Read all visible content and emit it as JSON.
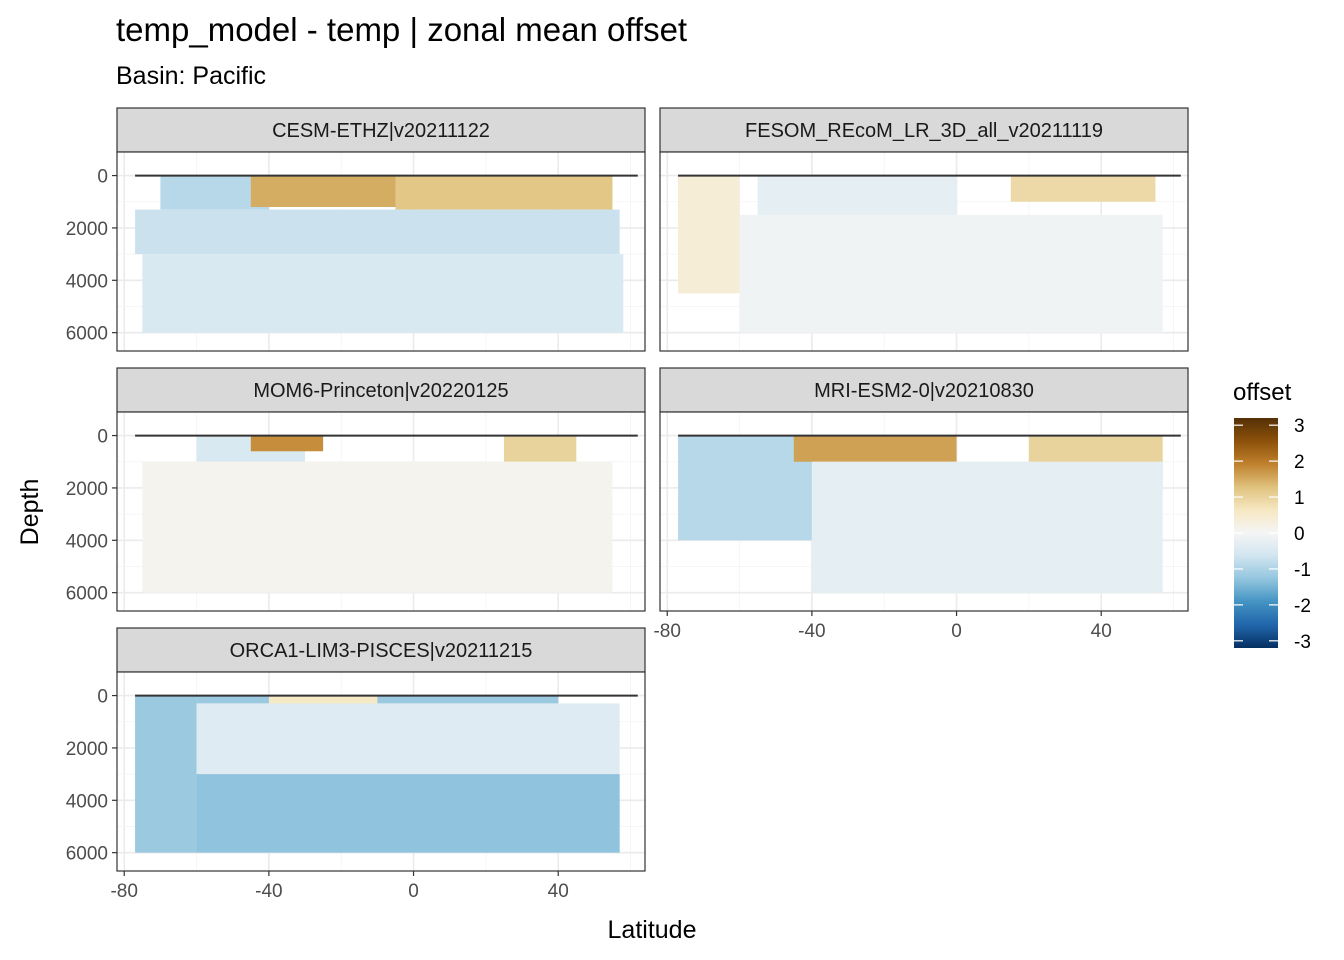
{
  "title": "temp_model - temp  | zonal mean offset",
  "subtitle": "Basin: Pacific",
  "xlabel": "Latitude",
  "ylabel": "Depth",
  "chart_data": {
    "type": "heatmap",
    "facet_layout": "3 rows x 2 columns, facet_wrap",
    "xlim": [
      -82,
      64
    ],
    "ylim": [
      6700,
      -900
    ],
    "y_reversed": true,
    "xticks": [
      -80,
      -40,
      0,
      40
    ],
    "yticks": [
      0,
      2000,
      4000,
      6000
    ],
    "x_tick_labels": [
      "-80",
      "-40",
      "0",
      "40"
    ],
    "y_tick_labels": [
      "0",
      "2000",
      "4000",
      "6000"
    ],
    "grid": true,
    "color_scale": {
      "title": "offset",
      "range": [
        -3.2,
        3.2
      ],
      "ticks": [
        3,
        2,
        1,
        0,
        -1,
        -2,
        -3
      ],
      "tick_labels": [
        "3",
        "2",
        "1",
        "0",
        "-1",
        "-2",
        "-3"
      ],
      "colors": [
        "#053061",
        "#2166ac",
        "#4393c3",
        "#92c5de",
        "#d1e5f0",
        "#f5f5f5",
        "#f6e8c3",
        "#dfc27d",
        "#bf812d",
        "#8c510a",
        "#543005"
      ],
      "legend_position": "right"
    },
    "panels": [
      {
        "label": "CESM-ETHZ|v20211122",
        "field": [
          {
            "lat": [
              -70,
              -40
            ],
            "depth": [
              0,
              1300
            ],
            "offset": -0.9
          },
          {
            "lat": [
              -45,
              -5
            ],
            "depth": [
              0,
              1200
            ],
            "offset": 1.5
          },
          {
            "lat": [
              -5,
              55
            ],
            "depth": [
              0,
              1300
            ],
            "offset": 1.2
          },
          {
            "lat": [
              -77,
              57
            ],
            "depth": [
              1300,
              3000
            ],
            "offset": -0.7
          },
          {
            "lat": [
              -75,
              58
            ],
            "depth": [
              3000,
              6000
            ],
            "offset": -0.5
          }
        ]
      },
      {
        "label": "FESOM_REcoM_LR_3D_all_v20211119",
        "field": [
          {
            "lat": [
              -77,
              -60
            ],
            "depth": [
              0,
              4500
            ],
            "offset": 0.4
          },
          {
            "lat": [
              -55,
              0
            ],
            "depth": [
              0,
              1500
            ],
            "offset": -0.3
          },
          {
            "lat": [
              15,
              55
            ],
            "depth": [
              0,
              1000
            ],
            "offset": 0.9
          },
          {
            "lat": [
              -60,
              57
            ],
            "depth": [
              1500,
              6000
            ],
            "offset": -0.1
          }
        ]
      },
      {
        "label": "MOM6-Princeton|v20220125",
        "field": [
          {
            "lat": [
              -60,
              -30
            ],
            "depth": [
              0,
              1000
            ],
            "offset": -0.5
          },
          {
            "lat": [
              -45,
              -25
            ],
            "depth": [
              0,
              600
            ],
            "offset": 1.8
          },
          {
            "lat": [
              25,
              45
            ],
            "depth": [
              0,
              1000
            ],
            "offset": 1.0
          },
          {
            "lat": [
              -75,
              55
            ],
            "depth": [
              1000,
              6000
            ],
            "offset": 0.1
          }
        ]
      },
      {
        "label": "MRI-ESM2-0|v20210830",
        "field": [
          {
            "lat": [
              -77,
              -40
            ],
            "depth": [
              0,
              4000
            ],
            "offset": -0.9
          },
          {
            "lat": [
              -45,
              0
            ],
            "depth": [
              0,
              1000
            ],
            "offset": 1.6
          },
          {
            "lat": [
              20,
              57
            ],
            "depth": [
              0,
              2000
            ],
            "offset": 1.0
          },
          {
            "lat": [
              -40,
              57
            ],
            "depth": [
              1000,
              6000
            ],
            "offset": -0.3
          }
        ]
      },
      {
        "label": "ORCA1-LIM3-PISCES|v20211215",
        "field": [
          {
            "lat": [
              -77,
              -60
            ],
            "depth": [
              0,
              6000
            ],
            "offset": -1.2
          },
          {
            "lat": [
              -60,
              40
            ],
            "depth": [
              0,
              300
            ],
            "offset": -1.2
          },
          {
            "lat": [
              -40,
              -10
            ],
            "depth": [
              0,
              600
            ],
            "offset": 0.6
          },
          {
            "lat": [
              -60,
              57
            ],
            "depth": [
              300,
              3000
            ],
            "offset": -0.4
          },
          {
            "lat": [
              -60,
              57
            ],
            "depth": [
              3000,
              6000
            ],
            "offset": -1.3
          }
        ]
      }
    ]
  }
}
